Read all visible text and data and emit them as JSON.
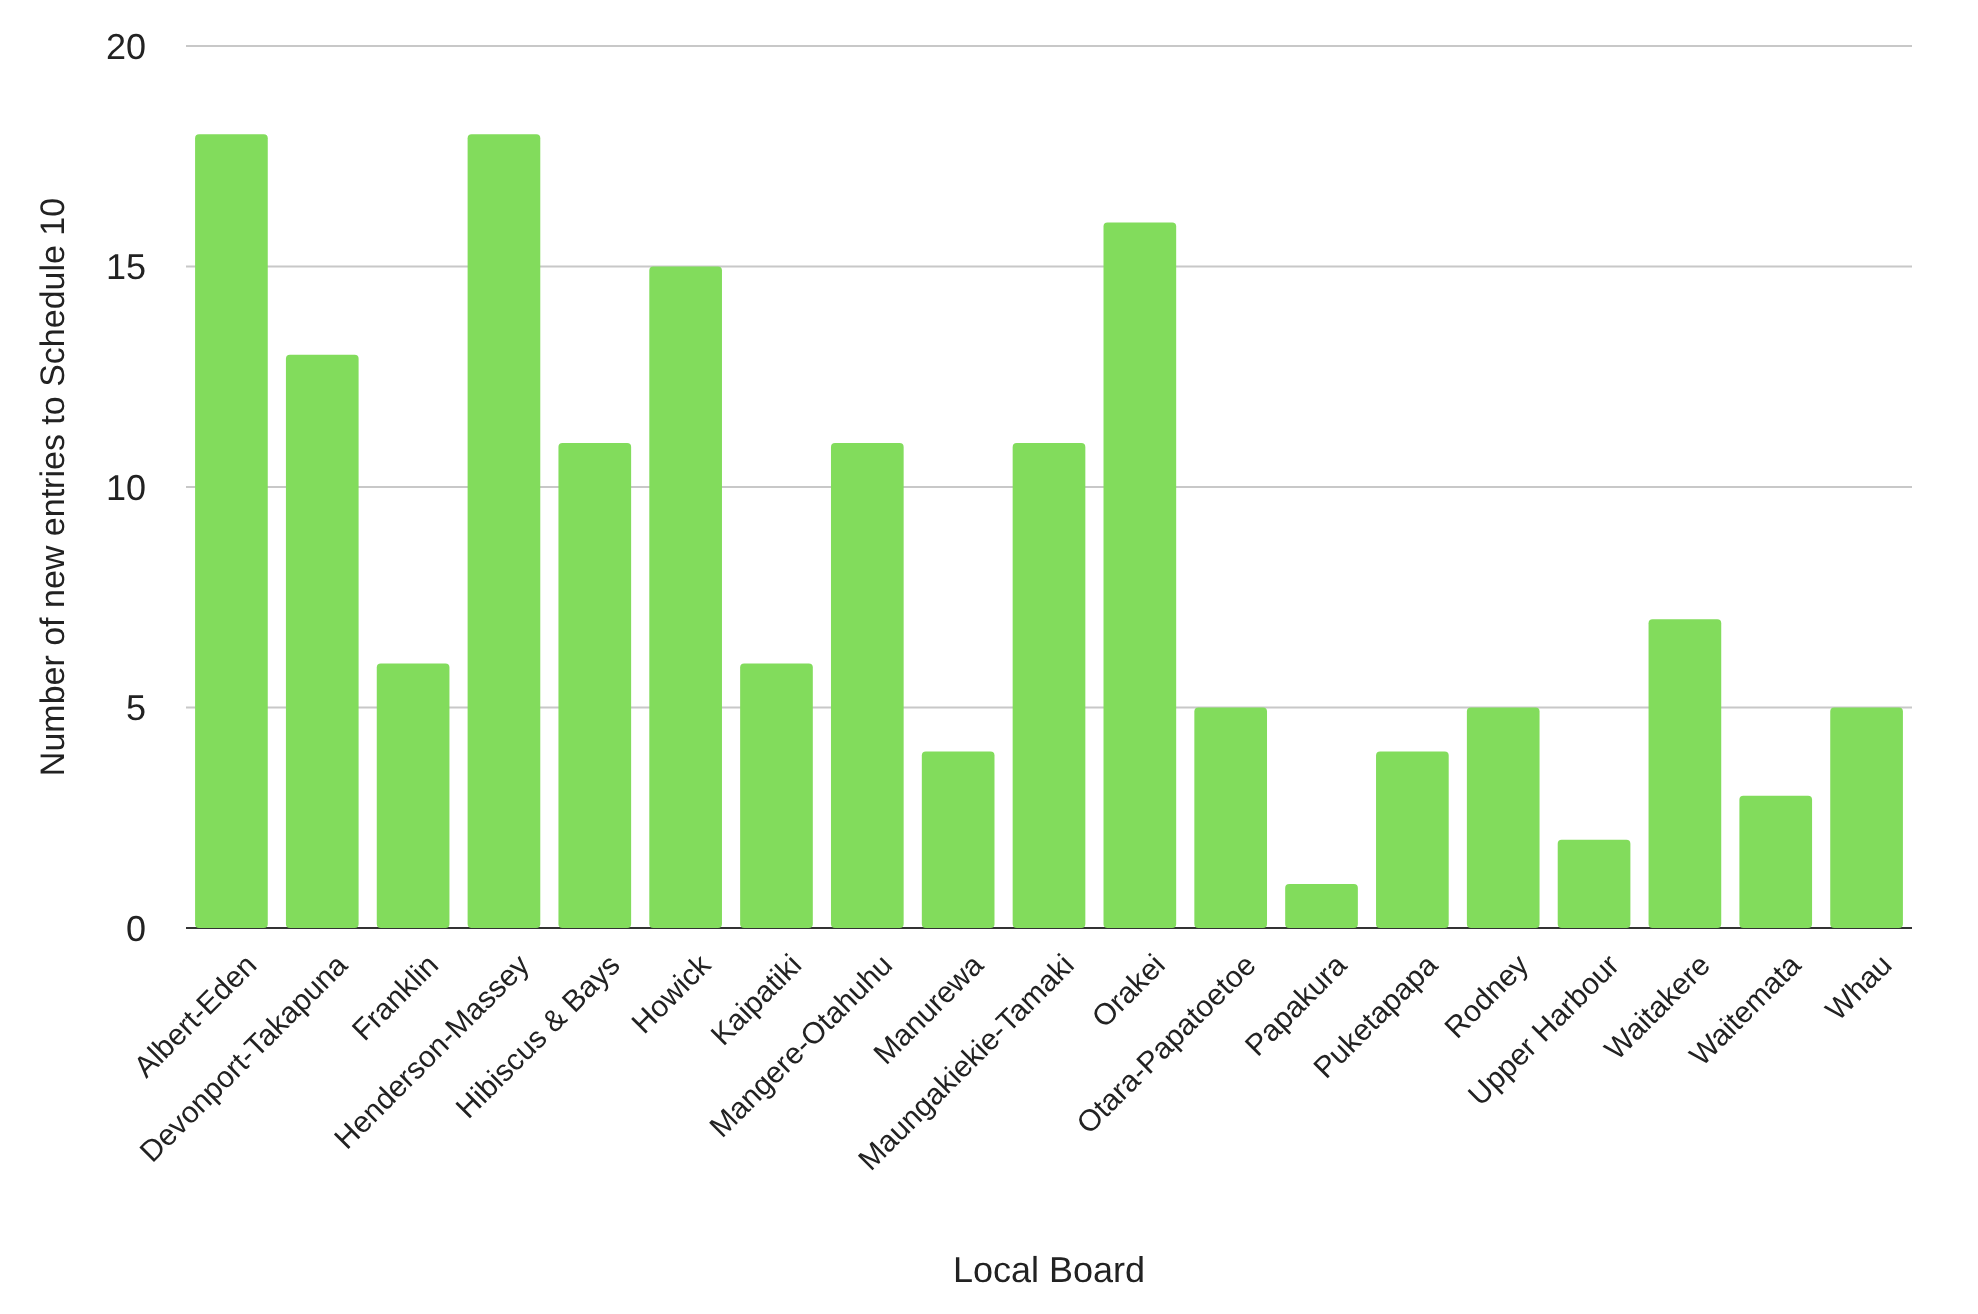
{
  "chart_data": {
    "type": "bar",
    "xlabel": "Local Board",
    "ylabel": "Number of new entries to Schedule 10",
    "categories": [
      "Albert-Eden",
      "Devonport-Takapuna",
      "Franklin",
      "Henderson-Massey",
      "Hibiscus & Bays",
      "Howick",
      "Kaipatiki",
      "Mangere-Otahuhu",
      "Manurewa",
      "Maungakiekie-Tamaki",
      "Orakei",
      "Otara-Papatoetoe",
      "Papakura",
      "Puketapapa",
      "Rodney",
      "Upper Harbour",
      "Waitakere",
      "Waitemata",
      "Whau"
    ],
    "values": [
      18,
      13,
      6,
      18,
      11,
      15,
      6,
      11,
      4,
      11,
      16,
      5,
      1,
      4,
      5,
      2,
      7,
      3,
      5
    ],
    "color": "#82dc5c",
    "ylim": [
      0,
      20
    ],
    "yticks": [
      0,
      5,
      10,
      15,
      20
    ],
    "grid": "y"
  }
}
